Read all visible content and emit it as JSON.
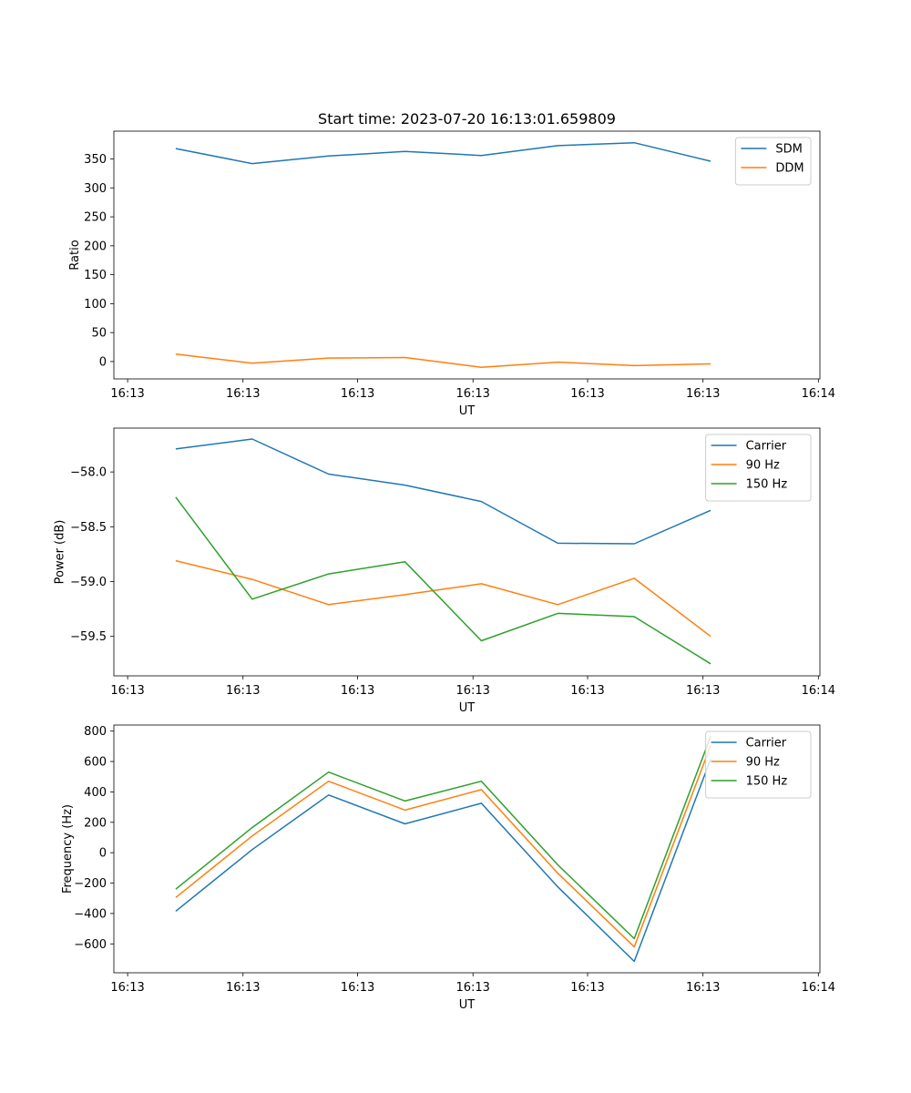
{
  "chart_data": [
    {
      "type": "line",
      "title": "Start time: 2023-07-20 16:13:01.659809",
      "xlabel": "UT",
      "ylabel": "Ratio",
      "x": [
        1,
        2,
        3,
        4,
        5,
        6,
        7,
        8
      ],
      "xlim": [
        0.19,
        9.43
      ],
      "x_ticks": [
        0.37,
        1.88,
        3.38,
        4.89,
        6.39,
        7.9,
        9.41
      ],
      "x_tick_labels": [
        "16:13",
        "16:13",
        "16:13",
        "16:13",
        "16:13",
        "16:13",
        "16:14"
      ],
      "ylim": [
        -30,
        398
      ],
      "y_ticks": [
        0,
        50,
        100,
        150,
        200,
        250,
        300,
        350
      ],
      "y_tick_labels": [
        "0",
        "50",
        "100",
        "150",
        "200",
        "250",
        "300",
        "350"
      ],
      "legend_position": "top-right",
      "series": [
        {
          "name": "SDM",
          "color": "#1f77b4",
          "values": [
            368,
            342,
            355,
            363,
            356,
            373,
            378,
            346
          ]
        },
        {
          "name": "DDM",
          "color": "#ff7f0e",
          "values": [
            13,
            -3,
            6,
            7,
            -10,
            -1,
            -7,
            -4
          ]
        }
      ]
    },
    {
      "type": "line",
      "title": "",
      "xlabel": "UT",
      "ylabel": "Power (dB)",
      "x": [
        1,
        2,
        3,
        4,
        5,
        6,
        7,
        8
      ],
      "xlim": [
        0.19,
        9.43
      ],
      "x_ticks": [
        0.37,
        1.88,
        3.38,
        4.89,
        6.39,
        7.9,
        9.41
      ],
      "x_tick_labels": [
        "16:13",
        "16:13",
        "16:13",
        "16:13",
        "16:13",
        "16:13",
        "16:14"
      ],
      "ylim": [
        -59.86,
        -57.6
      ],
      "y_ticks": [
        -58.0,
        -58.5,
        -59.0,
        -59.5
      ],
      "y_tick_labels": [
        "−58.0",
        "−58.5",
        "−59.0",
        "−59.5"
      ],
      "legend_position": "top-right",
      "series": [
        {
          "name": "Carrier",
          "color": "#1f77b4",
          "values": [
            -57.79,
            -57.7,
            -58.02,
            -58.12,
            -58.27,
            -58.65,
            -58.655,
            -58.35
          ]
        },
        {
          "name": "90 Hz",
          "color": "#ff7f0e",
          "values": [
            -58.81,
            -58.98,
            -59.21,
            -59.12,
            -59.02,
            -59.21,
            -58.97,
            -59.5
          ]
        },
        {
          "name": "150 Hz",
          "color": "#2ca02c",
          "values": [
            -58.23,
            -59.16,
            -58.93,
            -58.82,
            -59.54,
            -59.29,
            -59.32,
            -59.75
          ]
        }
      ]
    },
    {
      "type": "line",
      "title": "",
      "xlabel": "UT",
      "ylabel": "Frequency (Hz)",
      "x": [
        1,
        2,
        3,
        4,
        5,
        6,
        7,
        8
      ],
      "xlim": [
        0.19,
        9.43
      ],
      "x_ticks": [
        0.37,
        1.88,
        3.38,
        4.89,
        6.39,
        7.9,
        9.41
      ],
      "x_tick_labels": [
        "16:13",
        "16:13",
        "16:13",
        "16:13",
        "16:13",
        "16:13",
        "16:14"
      ],
      "ylim": [
        -790,
        840
      ],
      "y_ticks": [
        800,
        600,
        400,
        200,
        0,
        -200,
        -400,
        -600
      ],
      "y_tick_labels": [
        "800",
        "600",
        "400",
        "200",
        "0",
        "−200",
        "−400",
        "−600"
      ],
      "legend_position": "top-right",
      "series": [
        {
          "name": "Carrier",
          "color": "#1f77b4",
          "values": [
            -385,
            20,
            380,
            190,
            325,
            -225,
            -715,
            615
          ]
        },
        {
          "name": "90 Hz",
          "color": "#ff7f0e",
          "values": [
            -295,
            110,
            470,
            280,
            415,
            -135,
            -620,
            705
          ]
        },
        {
          "name": "150 Hz",
          "color": "#2ca02c",
          "values": [
            -240,
            165,
            530,
            340,
            470,
            -80,
            -565,
            765
          ]
        }
      ]
    }
  ]
}
